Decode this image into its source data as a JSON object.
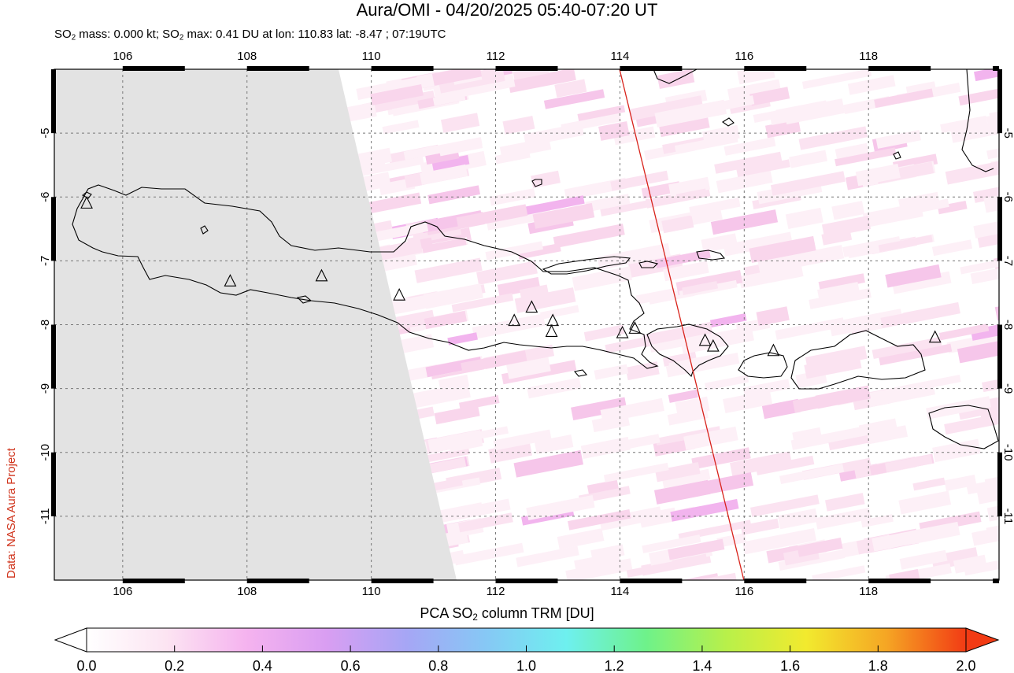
{
  "header": {
    "title": "Aura/OMI - 04/20/2025 05:40-07:20 UT",
    "subtitle_pre": "SO",
    "subtitle_sub": "2",
    "subtitle_mid": " mass: 0.000 kt; SO",
    "subtitle_sub2": "2",
    "subtitle_post": " max: 0.41 DU at lon: 110.83 lat: -8.47 ; 07:19UTC"
  },
  "credit": "Data: NASA Aura Project",
  "map": {
    "lon_ticks": [
      "106",
      "108",
      "110",
      "112",
      "114",
      "116",
      "118"
    ],
    "lat_ticks": [
      "-5",
      "-6",
      "-7",
      "-8",
      "-9",
      "-10",
      "-11"
    ],
    "lon_range": [
      104.9,
      120.1
    ],
    "lat_range": [
      -12.0,
      -4.0
    ],
    "no_data_color": "#e3e3e3",
    "coast_color": "#000000",
    "track_color": "#d8231b",
    "volcano_markers": [
      {
        "lon": 105.42,
        "lat": -6.1
      },
      {
        "lon": 107.73,
        "lat": -7.32
      },
      {
        "lon": 109.2,
        "lat": -7.24
      },
      {
        "lon": 110.45,
        "lat": -7.54
      },
      {
        "lon": 112.3,
        "lat": -7.94
      },
      {
        "lon": 112.58,
        "lat": -7.73
      },
      {
        "lon": 112.92,
        "lat": -7.94
      },
      {
        "lon": 112.9,
        "lat": -8.11
      },
      {
        "lon": 114.04,
        "lat": -8.13
      },
      {
        "lon": 114.24,
        "lat": -8.06
      },
      {
        "lon": 115.37,
        "lat": -8.25
      },
      {
        "lon": 115.5,
        "lat": -8.34
      },
      {
        "lon": 116.47,
        "lat": -8.41
      },
      {
        "lon": 119.07,
        "lat": -8.2
      }
    ]
  },
  "colorbar": {
    "label_pre": "PCA SO",
    "label_sub": "2",
    "label_post": " column TRM [DU]",
    "ticks": [
      "0.0",
      "0.2",
      "0.4",
      "0.6",
      "0.8",
      "1.0",
      "1.2",
      "1.4",
      "1.6",
      "1.8",
      "2.0"
    ],
    "colors": [
      "#ffffff",
      "#fce4f2",
      "#f5b3ef",
      "#d99ef2",
      "#a6a6f5",
      "#86c8f5",
      "#6ef0ef",
      "#6ef28a",
      "#b8f04a",
      "#f2ea2e",
      "#f5a624",
      "#f23b14"
    ]
  }
}
